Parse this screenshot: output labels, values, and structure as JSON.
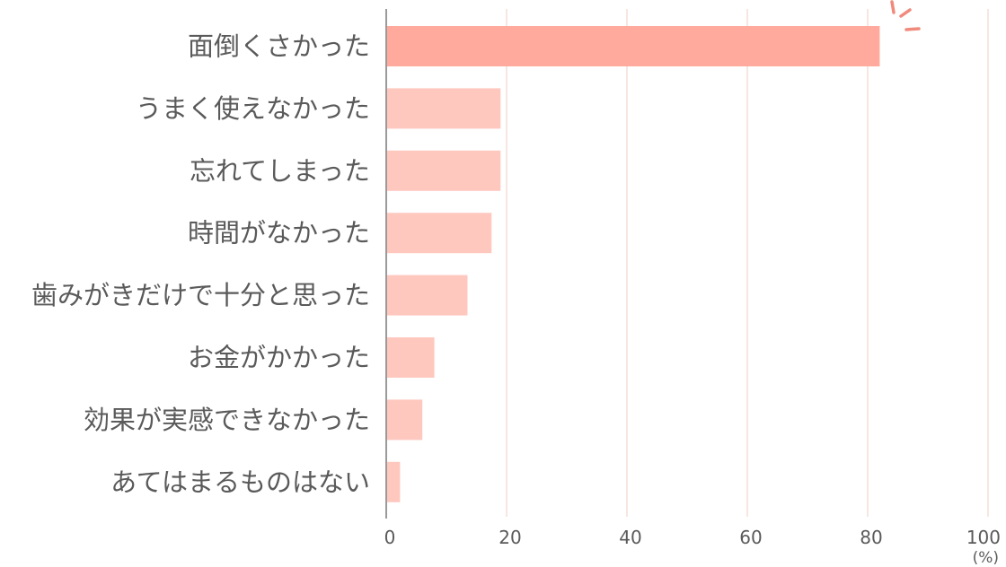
{
  "chart_data": {
    "type": "bar",
    "orientation": "horizontal",
    "categories": [
      "面倒くさかった",
      "うまく使えなかった",
      "忘れてしまった",
      "時間がなかった",
      "歯みがきだけで十分と思った",
      "お金がかかった",
      "効果が実感できなかった",
      "あてはまるものはない"
    ],
    "values": [
      82,
      19,
      19,
      17.5,
      13.5,
      8,
      6,
      2.3
    ],
    "xlim": [
      0,
      100
    ],
    "x_ticks": [
      "0",
      "20",
      "40",
      "60",
      "80",
      "100"
    ],
    "unit": "(%)",
    "grid": true,
    "highlight_index": 0,
    "colors": {
      "highlight": "#ffaa9c",
      "bar": "#ffc8bf",
      "grid": "#f3dfd9",
      "axis": "#9a9a9a",
      "accent": "#f08a7c"
    }
  }
}
